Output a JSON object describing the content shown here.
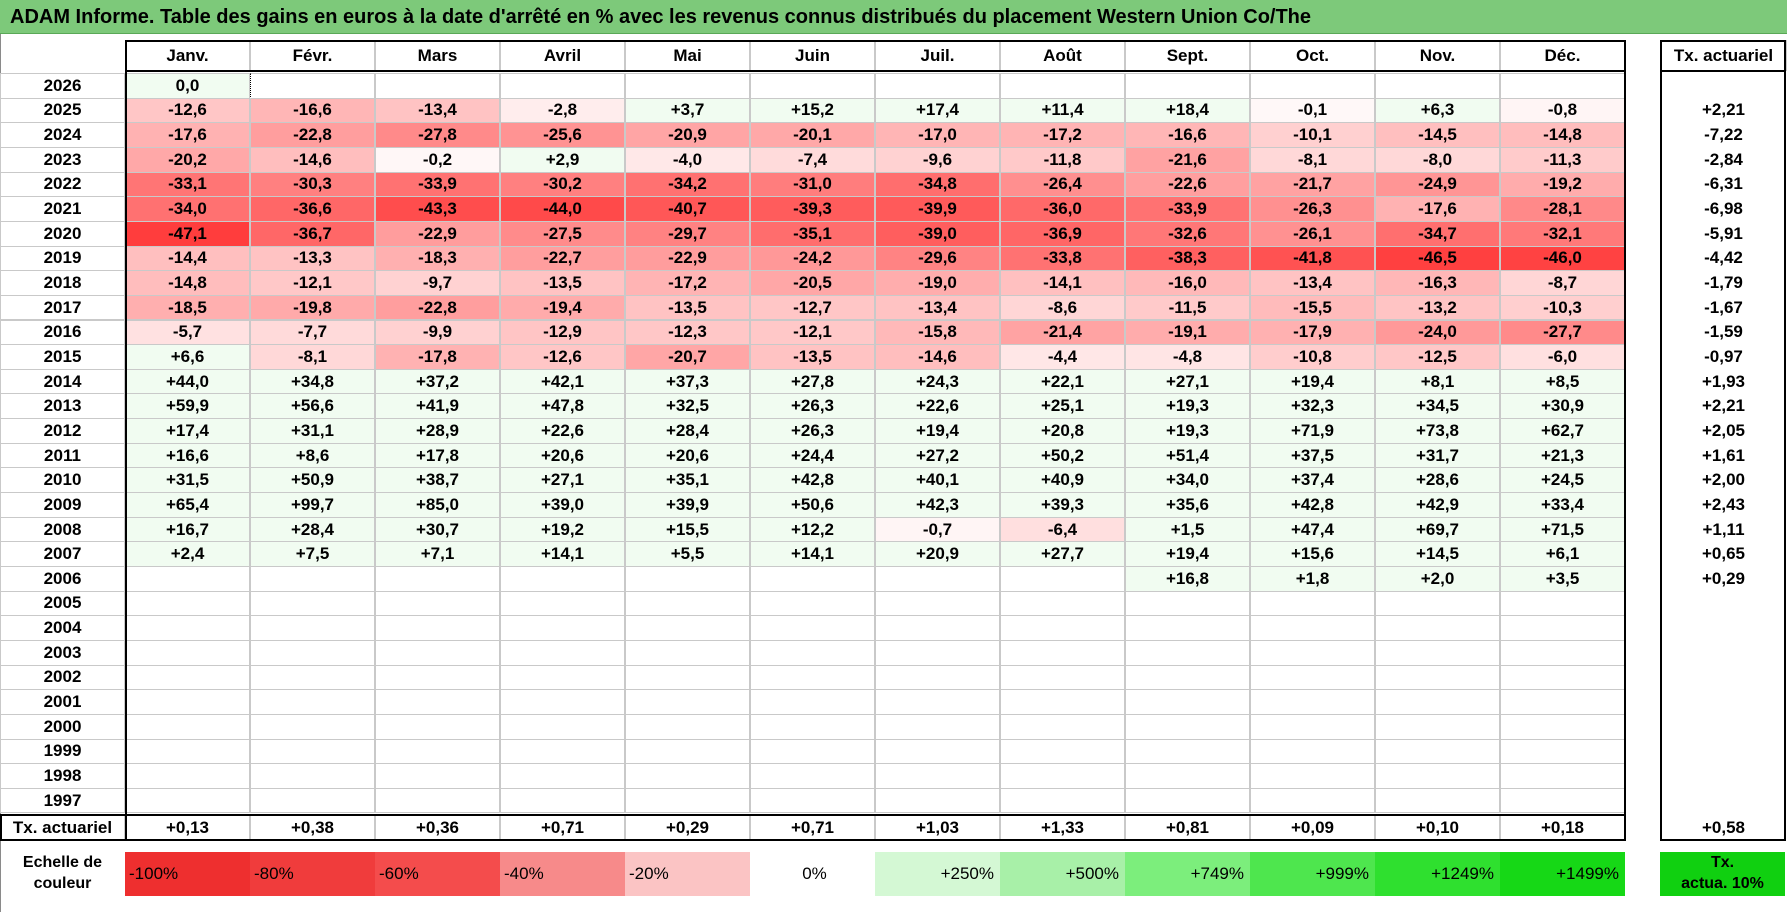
{
  "title": "ADAM Informe. Table des gains en euros à la date d'arrêté en % avec les revenus connus distribués du placement Western Union Co/The",
  "months": [
    "Janv.",
    "Févr.",
    "Mars",
    "Avril",
    "Mai",
    "Juin",
    "Juil.",
    "Août",
    "Sept.",
    "Oct.",
    "Nov.",
    "Déc."
  ],
  "annual_header": "Tx. actuariel",
  "rows": [
    {
      "year": "2026",
      "values": [
        "0,0",
        "",
        "",
        "",
        "",
        "",
        "",
        "",
        "",
        "",
        "",
        ""
      ],
      "annual": ""
    },
    {
      "year": "2025",
      "values": [
        "-12,6",
        "-16,6",
        "-13,4",
        "-2,8",
        "+3,7",
        "+15,2",
        "+17,4",
        "+11,4",
        "+18,4",
        "-0,1",
        "+6,3",
        "-0,8"
      ],
      "annual": "+2,21"
    },
    {
      "year": "2024",
      "values": [
        "-17,6",
        "-22,8",
        "-27,8",
        "-25,6",
        "-20,9",
        "-20,1",
        "-17,0",
        "-17,2",
        "-16,6",
        "-10,1",
        "-14,5",
        "-14,8"
      ],
      "annual": "-7,22"
    },
    {
      "year": "2023",
      "values": [
        "-20,2",
        "-14,6",
        "-0,2",
        "+2,9",
        "-4,0",
        "-7,4",
        "-9,6",
        "-11,8",
        "-21,6",
        "-8,1",
        "-8,0",
        "-11,3"
      ],
      "annual": "-2,84"
    },
    {
      "year": "2022",
      "values": [
        "-33,1",
        "-30,3",
        "-33,9",
        "-30,2",
        "-34,2",
        "-31,0",
        "-34,8",
        "-26,4",
        "-22,6",
        "-21,7",
        "-24,9",
        "-19,2"
      ],
      "annual": "-6,31"
    },
    {
      "year": "2021",
      "values": [
        "-34,0",
        "-36,6",
        "-43,3",
        "-44,0",
        "-40,7",
        "-39,3",
        "-39,9",
        "-36,0",
        "-33,9",
        "-26,3",
        "-17,6",
        "-28,1"
      ],
      "annual": "-6,98"
    },
    {
      "year": "2020",
      "values": [
        "-47,1",
        "-36,7",
        "-22,9",
        "-27,5",
        "-29,7",
        "-35,1",
        "-39,0",
        "-36,9",
        "-32,6",
        "-26,1",
        "-34,7",
        "-32,1"
      ],
      "annual": "-5,91"
    },
    {
      "year": "2019",
      "values": [
        "-14,4",
        "-13,3",
        "-18,3",
        "-22,7",
        "-22,9",
        "-24,2",
        "-29,6",
        "-33,8",
        "-38,3",
        "-41,8",
        "-46,5",
        "-46,0"
      ],
      "annual": "-4,42"
    },
    {
      "year": "2018",
      "values": [
        "-14,8",
        "-12,1",
        "-9,7",
        "-13,5",
        "-17,2",
        "-20,5",
        "-19,0",
        "-14,1",
        "-16,0",
        "-13,4",
        "-16,3",
        "-8,7"
      ],
      "annual": "-1,79"
    },
    {
      "year": "2017",
      "values": [
        "-18,5",
        "-19,8",
        "-22,8",
        "-19,4",
        "-13,5",
        "-12,7",
        "-13,4",
        "-8,6",
        "-11,5",
        "-15,5",
        "-13,2",
        "-10,3"
      ],
      "annual": "-1,67"
    },
    {
      "year": "2016",
      "values": [
        "-5,7",
        "-7,7",
        "-9,9",
        "-12,9",
        "-12,3",
        "-12,1",
        "-15,8",
        "-21,4",
        "-19,1",
        "-17,9",
        "-24,0",
        "-27,7"
      ],
      "annual": "-1,59"
    },
    {
      "year": "2015",
      "values": [
        "+6,6",
        "-8,1",
        "-17,8",
        "-12,6",
        "-20,7",
        "-13,5",
        "-14,6",
        "-4,4",
        "-4,8",
        "-10,8",
        "-12,5",
        "-6,0"
      ],
      "annual": "-0,97"
    },
    {
      "year": "2014",
      "values": [
        "+44,0",
        "+34,8",
        "+37,2",
        "+42,1",
        "+37,3",
        "+27,8",
        "+24,3",
        "+22,1",
        "+27,1",
        "+19,4",
        "+8,1",
        "+8,5"
      ],
      "annual": "+1,93"
    },
    {
      "year": "2013",
      "values": [
        "+59,9",
        "+56,6",
        "+41,9",
        "+47,8",
        "+32,5",
        "+26,3",
        "+22,6",
        "+25,1",
        "+19,3",
        "+32,3",
        "+34,5",
        "+30,9"
      ],
      "annual": "+2,21"
    },
    {
      "year": "2012",
      "values": [
        "+17,4",
        "+31,1",
        "+28,9",
        "+22,6",
        "+28,4",
        "+26,3",
        "+19,4",
        "+20,8",
        "+19,3",
        "+71,9",
        "+73,8",
        "+62,7"
      ],
      "annual": "+2,05"
    },
    {
      "year": "2011",
      "values": [
        "+16,6",
        "+8,6",
        "+17,8",
        "+20,6",
        "+20,6",
        "+24,4",
        "+27,2",
        "+50,2",
        "+51,4",
        "+37,5",
        "+31,7",
        "+21,3"
      ],
      "annual": "+1,61"
    },
    {
      "year": "2010",
      "values": [
        "+31,5",
        "+50,9",
        "+38,7",
        "+27,1",
        "+35,1",
        "+42,8",
        "+40,1",
        "+40,9",
        "+34,0",
        "+37,4",
        "+28,6",
        "+24,5"
      ],
      "annual": "+2,00"
    },
    {
      "year": "2009",
      "values": [
        "+65,4",
        "+99,7",
        "+85,0",
        "+39,0",
        "+39,9",
        "+50,6",
        "+42,3",
        "+39,3",
        "+35,6",
        "+42,8",
        "+42,9",
        "+33,4"
      ],
      "annual": "+2,43"
    },
    {
      "year": "2008",
      "values": [
        "+16,7",
        "+28,4",
        "+30,7",
        "+19,2",
        "+15,5",
        "+12,2",
        "-0,7",
        "-6,4",
        "+1,5",
        "+47,4",
        "+69,7",
        "+71,5"
      ],
      "annual": "+1,11"
    },
    {
      "year": "2007",
      "values": [
        "+2,4",
        "+7,5",
        "+7,1",
        "+14,1",
        "+5,5",
        "+14,1",
        "+20,9",
        "+27,7",
        "+19,4",
        "+15,6",
        "+14,5",
        "+6,1"
      ],
      "annual": "+0,65"
    },
    {
      "year": "2006",
      "values": [
        "",
        "",
        "",
        "",
        "",
        "",
        "",
        "",
        "+16,8",
        "+1,8",
        "+2,0",
        "+3,5"
      ],
      "annual": "+0,29"
    },
    {
      "year": "2005",
      "values": [
        "",
        "",
        "",
        "",
        "",
        "",
        "",
        "",
        "",
        "",
        "",
        ""
      ],
      "annual": ""
    },
    {
      "year": "2004",
      "values": [
        "",
        "",
        "",
        "",
        "",
        "",
        "",
        "",
        "",
        "",
        "",
        ""
      ],
      "annual": ""
    },
    {
      "year": "2003",
      "values": [
        "",
        "",
        "",
        "",
        "",
        "",
        "",
        "",
        "",
        "",
        "",
        ""
      ],
      "annual": ""
    },
    {
      "year": "2002",
      "values": [
        "",
        "",
        "",
        "",
        "",
        "",
        "",
        "",
        "",
        "",
        "",
        ""
      ],
      "annual": ""
    },
    {
      "year": "2001",
      "values": [
        "",
        "",
        "",
        "",
        "",
        "",
        "",
        "",
        "",
        "",
        "",
        ""
      ],
      "annual": ""
    },
    {
      "year": "2000",
      "values": [
        "",
        "",
        "",
        "",
        "",
        "",
        "",
        "",
        "",
        "",
        "",
        ""
      ],
      "annual": ""
    },
    {
      "year": "1999",
      "values": [
        "",
        "",
        "",
        "",
        "",
        "",
        "",
        "",
        "",
        "",
        "",
        ""
      ],
      "annual": ""
    },
    {
      "year": "1998",
      "values": [
        "",
        "",
        "",
        "",
        "",
        "",
        "",
        "",
        "",
        "",
        "",
        ""
      ],
      "annual": ""
    },
    {
      "year": "1997",
      "values": [
        "",
        "",
        "",
        "",
        "",
        "",
        "",
        "",
        "",
        "",
        "",
        ""
      ],
      "annual": ""
    }
  ],
  "footer": {
    "label": "Tx. actuariel",
    "values": [
      "+0,13",
      "+0,38",
      "+0,36",
      "+0,71",
      "+0,29",
      "+0,71",
      "+1,03",
      "+1,33",
      "+0,81",
      "+0,09",
      "+0,10",
      "+0,18"
    ],
    "annual": "+0,58"
  },
  "scale": {
    "label_line1": "Echelle de",
    "label_line2": "couleur",
    "items": [
      {
        "text": "-100%",
        "color": "#ee2f2f"
      },
      {
        "text": "-80%",
        "color": "#f03c3c"
      },
      {
        "text": "-60%",
        "color": "#f44c4c"
      },
      {
        "text": "-40%",
        "color": "#f78a8a"
      },
      {
        "text": "-20%",
        "color": "#fbc4c4"
      },
      {
        "text": "0%",
        "color": "#ffffff"
      },
      {
        "text": "+250%",
        "color": "#d4f8d4"
      },
      {
        "text": "+500%",
        "color": "#a8f0a8"
      },
      {
        "text": "+749%",
        "color": "#7cee7c"
      },
      {
        "text": "+999%",
        "color": "#4ee64e"
      },
      {
        "text": "+1249%",
        "color": "#2fe02f"
      },
      {
        "text": "+1499%",
        "color": "#16d816"
      }
    ],
    "tx_line1": "Tx.",
    "tx_line2": "actua. 10%",
    "tx_color": "#10d010"
  },
  "colors": {
    "title_bg": "#7dc97a",
    "negative_max": "#f03232",
    "positive_tint": "#eefcee"
  }
}
